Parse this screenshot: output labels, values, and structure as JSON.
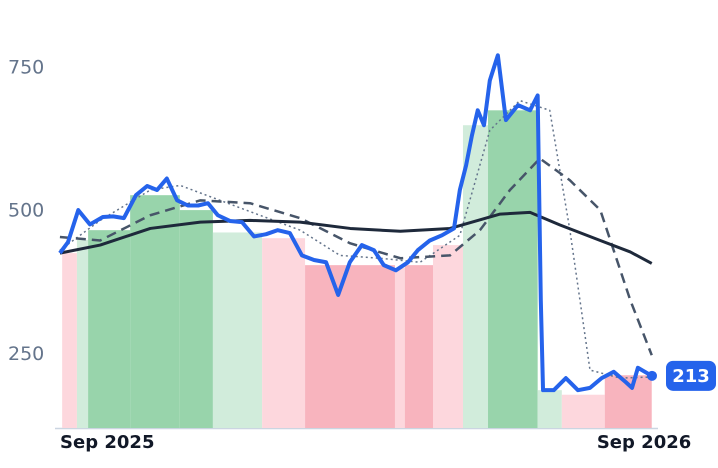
{
  "chart_data": {
    "type": "line",
    "xlim": [
      -0.18,
      13.3
    ],
    "xticks": [
      {
        "value": 0,
        "label": "Sep 2025"
      },
      {
        "value": 12,
        "label": "Sep 2026"
      }
    ],
    "ylim": [
      122,
      830
    ],
    "yticks": [
      250,
      500,
      750
    ],
    "grid": false,
    "bands": [
      {
        "start": -0.02,
        "end": 0.31,
        "value": 427,
        "color": "#fdd7dd"
      },
      {
        "start": 0.31,
        "end": 0.56,
        "value": 450,
        "color": "#d1ecdb"
      },
      {
        "start": 0.56,
        "end": 1.5,
        "value": 467,
        "color": "#98d4ab"
      },
      {
        "start": 1.5,
        "end": 2.61,
        "value": 528,
        "color": "#98d4ab"
      },
      {
        "start": 2.61,
        "end": 3.35,
        "value": 502,
        "color": "#98d4ab"
      },
      {
        "start": 3.35,
        "end": 4.45,
        "value": 463,
        "color": "#d1ecdb"
      },
      {
        "start": 4.45,
        "end": 5.41,
        "value": 453,
        "color": "#fdd7dd"
      },
      {
        "start": 5.41,
        "end": 7.42,
        "value": 406,
        "color": "#f8b4be"
      },
      {
        "start": 7.42,
        "end": 7.64,
        "value": 401,
        "color": "#fdd7dd"
      },
      {
        "start": 7.64,
        "end": 8.27,
        "value": 406,
        "color": "#f8b4be"
      },
      {
        "start": 8.27,
        "end": 8.94,
        "value": 441,
        "color": "#fdd7dd"
      },
      {
        "start": 8.94,
        "end": 9.5,
        "value": 650,
        "color": "#d1ecdb"
      },
      {
        "start": 9.5,
        "end": 10.61,
        "value": 676,
        "color": "#98d4ab"
      },
      {
        "start": 10.61,
        "end": 11.15,
        "value": 188,
        "color": "#d1ecdb"
      },
      {
        "start": 11.15,
        "end": 12.11,
        "value": 180,
        "color": "#fdd7dd"
      },
      {
        "start": 12.11,
        "end": 13.16,
        "value": 214,
        "color": "#f8b4be"
      }
    ],
    "series": [
      {
        "color": "#2563eb",
        "style": "solid",
        "width": 4,
        "x": [
          -0.07,
          0.11,
          0.34,
          0.6,
          0.89,
          1.12,
          1.36,
          1.63,
          1.88,
          2.1,
          2.32,
          2.55,
          2.79,
          3.02,
          3.24,
          3.46,
          3.73,
          4.0,
          4.27,
          4.54,
          4.8,
          5.07,
          5.34,
          5.61,
          5.88,
          6.15,
          6.41,
          6.68,
          6.95,
          7.17,
          7.44,
          7.71,
          7.93,
          8.2,
          8.47,
          8.74,
          8.87,
          9.01,
          9.14,
          9.27,
          9.41,
          9.54,
          9.72,
          9.9,
          10.17,
          10.44,
          10.61,
          10.68,
          10.73,
          10.97,
          11.24,
          11.51,
          11.78,
          12.04,
          12.31,
          12.58,
          12.72,
          12.85,
          13.16
        ],
        "values": [
          427,
          446,
          502,
          477,
          490,
          491,
          488,
          528,
          544,
          537,
          557,
          519,
          510,
          510,
          514,
          493,
          483,
          481,
          456,
          460,
          467,
          462,
          423,
          415,
          411,
          354,
          411,
          441,
          432,
          406,
          397,
          411,
          432,
          449,
          458,
          470,
          537,
          580,
          632,
          676,
          650,
          728,
          772,
          659,
          685,
          676,
          702,
          345,
          188,
          188,
          209,
          188,
          192,
          209,
          220,
          202,
          192,
          227,
          213
        ]
      },
      {
        "color": "#1e293b",
        "style": "solid",
        "width": 3,
        "x": [
          -0.07,
          0.83,
          1.95,
          3.07,
          4.18,
          5.3,
          6.42,
          7.54,
          8.65,
          9.77,
          10.44,
          11.11,
          12.01,
          12.68,
          13.16
        ],
        "values": [
          427,
          441,
          470,
          481,
          484,
          481,
          470,
          465,
          470,
          495,
          498,
          476,
          449,
          429,
          409
        ]
      },
      {
        "color": "#475569",
        "style": "dashed",
        "width": 2.5,
        "x": [
          -0.07,
          0.83,
          1.95,
          3.07,
          4.18,
          5.3,
          6.42,
          7.54,
          8.65,
          9.32,
          9.99,
          10.66,
          11.33,
          12.01,
          12.68,
          13.16
        ],
        "values": [
          455,
          449,
          493,
          519,
          514,
          488,
          444,
          418,
          423,
          467,
          537,
          592,
          554,
          502,
          345,
          249
        ]
      },
      {
        "color": "#64748b",
        "style": "dotted",
        "width": 1.5,
        "x": [
          -0.07,
          0.83,
          1.95,
          2.62,
          3.51,
          4.4,
          5.3,
          6.19,
          7.09,
          7.98,
          8.87,
          9.54,
          10.21,
          10.88,
          11.33,
          11.78,
          12.46,
          13.16
        ],
        "values": [
          432,
          484,
          537,
          545,
          519,
          493,
          467,
          423,
          418,
          411,
          458,
          641,
          693,
          676,
          467,
          223,
          209,
          211
        ]
      }
    ]
  }
}
